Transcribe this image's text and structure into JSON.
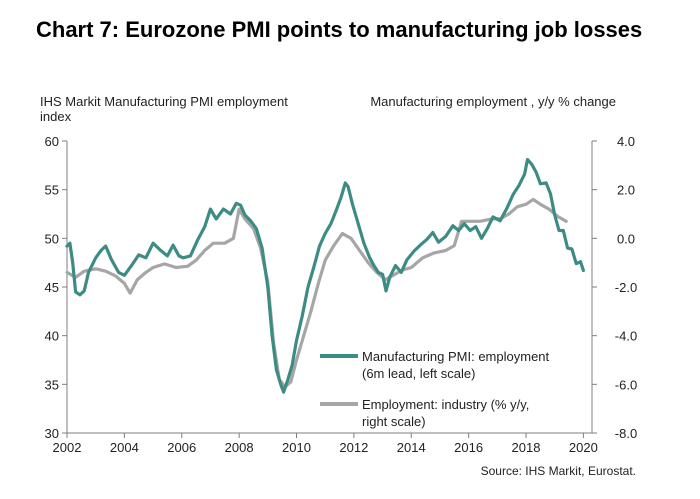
{
  "title": "Chart 7: Eurozone PMI points to manufacturing job losses",
  "left_axis_label": "IHS Markit Manufacturing PMI employment index",
  "right_axis_label": "Manufacturing employment , y/y % change",
  "source": "Source: IHS Markit, Eurostat.",
  "colors": {
    "pmi": "#3d8c84",
    "employment": "#a6a6a6",
    "axis": "#7f7f7f"
  },
  "chart_data": {
    "type": "line",
    "title": "Chart 7: Eurozone PMI points to manufacturing job losses",
    "xlabel": "",
    "ylabel": "IHS Markit Manufacturing PMI employment index",
    "y2label": "Manufacturing employment , y/y % change",
    "xlim": [
      2002,
      2020.3
    ],
    "ylim": [
      30,
      60
    ],
    "y2lim": [
      -8,
      4
    ],
    "x_ticks": [
      2002,
      2004,
      2006,
      2008,
      2010,
      2012,
      2014,
      2016,
      2018,
      2020
    ],
    "x_tick_labels": [
      "2002",
      "2004",
      "2006",
      "2008",
      "2010",
      "2012",
      "2014",
      "2016",
      "2018",
      "2020"
    ],
    "y_ticks": [
      30,
      35,
      40,
      45,
      50,
      55,
      60
    ],
    "y_tick_labels": [
      "30",
      "35",
      "40",
      "45",
      "50",
      "55",
      "60"
    ],
    "y2_ticks": [
      -8,
      -6,
      -4,
      -2,
      0,
      2,
      4
    ],
    "y2_tick_labels": [
      "-8.0",
      "-6.0",
      "-4.0",
      "-2.0",
      "0.0",
      "2.0",
      "4.0"
    ],
    "grid": false,
    "legend_position": "center-right",
    "series": [
      {
        "name": "Manufacturing PMI: employment (6m lead, left scale)",
        "axis": "left",
        "points": [
          [
            2002.0,
            49.2
          ],
          [
            2002.1,
            49.5
          ],
          [
            2002.2,
            47.5
          ],
          [
            2002.3,
            44.5
          ],
          [
            2002.45,
            44.2
          ],
          [
            2002.6,
            44.6
          ],
          [
            2002.75,
            46.5
          ],
          [
            2003.0,
            48.0
          ],
          [
            2003.2,
            48.8
          ],
          [
            2003.35,
            49.2
          ],
          [
            2003.55,
            47.8
          ],
          [
            2003.8,
            46.5
          ],
          [
            2004.0,
            46.2
          ],
          [
            2004.25,
            47.2
          ],
          [
            2004.5,
            48.3
          ],
          [
            2004.75,
            48.0
          ],
          [
            2005.0,
            49.5
          ],
          [
            2005.25,
            48.8
          ],
          [
            2005.5,
            48.2
          ],
          [
            2005.7,
            49.3
          ],
          [
            2005.9,
            48.2
          ],
          [
            2006.05,
            48.0
          ],
          [
            2006.3,
            48.2
          ],
          [
            2006.55,
            49.8
          ],
          [
            2006.8,
            51.2
          ],
          [
            2007.0,
            53.0
          ],
          [
            2007.2,
            52.0
          ],
          [
            2007.45,
            53.0
          ],
          [
            2007.7,
            52.5
          ],
          [
            2007.9,
            53.6
          ],
          [
            2008.05,
            53.4
          ],
          [
            2008.2,
            52.4
          ],
          [
            2008.4,
            51.8
          ],
          [
            2008.6,
            51.0
          ],
          [
            2008.8,
            49.0
          ],
          [
            2009.0,
            45.0
          ],
          [
            2009.15,
            40.0
          ],
          [
            2009.3,
            36.5
          ],
          [
            2009.45,
            35.0
          ],
          [
            2009.55,
            34.2
          ],
          [
            2009.7,
            35.5
          ],
          [
            2009.85,
            37.0
          ],
          [
            2010.0,
            39.5
          ],
          [
            2010.2,
            42.0
          ],
          [
            2010.4,
            45.0
          ],
          [
            2010.6,
            47.0
          ],
          [
            2010.8,
            49.2
          ],
          [
            2011.0,
            50.5
          ],
          [
            2011.2,
            51.5
          ],
          [
            2011.4,
            53.0
          ],
          [
            2011.55,
            54.2
          ],
          [
            2011.7,
            55.7
          ],
          [
            2011.8,
            55.3
          ],
          [
            2011.95,
            53.5
          ],
          [
            2012.15,
            51.5
          ],
          [
            2012.35,
            49.5
          ],
          [
            2012.55,
            48.0
          ],
          [
            2012.7,
            47.2
          ],
          [
            2012.85,
            46.5
          ],
          [
            2013.0,
            46.3
          ],
          [
            2013.12,
            44.6
          ],
          [
            2013.25,
            46.0
          ],
          [
            2013.45,
            47.2
          ],
          [
            2013.65,
            46.5
          ],
          [
            2013.85,
            47.8
          ],
          [
            2014.1,
            48.7
          ],
          [
            2014.35,
            49.4
          ],
          [
            2014.55,
            49.9
          ],
          [
            2014.75,
            50.6
          ],
          [
            2014.95,
            49.6
          ],
          [
            2015.2,
            50.2
          ],
          [
            2015.45,
            51.3
          ],
          [
            2015.65,
            50.8
          ],
          [
            2015.85,
            51.5
          ],
          [
            2016.05,
            50.8
          ],
          [
            2016.25,
            51.2
          ],
          [
            2016.45,
            50.0
          ],
          [
            2016.65,
            51.0
          ],
          [
            2016.85,
            52.2
          ],
          [
            2017.1,
            51.8
          ],
          [
            2017.35,
            53.2
          ],
          [
            2017.55,
            54.5
          ],
          [
            2017.75,
            55.4
          ],
          [
            2017.95,
            56.6
          ],
          [
            2018.05,
            58.1
          ],
          [
            2018.2,
            57.6
          ],
          [
            2018.35,
            56.8
          ],
          [
            2018.5,
            55.6
          ],
          [
            2018.7,
            55.7
          ],
          [
            2018.85,
            54.6
          ],
          [
            2019.0,
            52.4
          ],
          [
            2019.15,
            50.8
          ],
          [
            2019.3,
            50.8
          ],
          [
            2019.45,
            49.0
          ],
          [
            2019.6,
            48.9
          ],
          [
            2019.75,
            47.4
          ],
          [
            2019.9,
            47.6
          ],
          [
            2020.0,
            46.7
          ]
        ]
      },
      {
        "name": "Employment: industry (% y/y, right scale)",
        "axis": "right",
        "points": [
          [
            2002.0,
            -1.4
          ],
          [
            2002.3,
            -1.6
          ],
          [
            2002.6,
            -1.35
          ],
          [
            2003.0,
            -1.25
          ],
          [
            2003.35,
            -1.35
          ],
          [
            2003.7,
            -1.55
          ],
          [
            2004.0,
            -1.85
          ],
          [
            2004.2,
            -2.25
          ],
          [
            2004.45,
            -1.7
          ],
          [
            2004.75,
            -1.4
          ],
          [
            2005.0,
            -1.2
          ],
          [
            2005.4,
            -1.05
          ],
          [
            2005.8,
            -1.2
          ],
          [
            2006.2,
            -1.15
          ],
          [
            2006.5,
            -0.9
          ],
          [
            2006.8,
            -0.5
          ],
          [
            2007.1,
            -0.2
          ],
          [
            2007.5,
            -0.2
          ],
          [
            2007.8,
            0.0
          ],
          [
            2008.0,
            1.2
          ],
          [
            2008.2,
            0.8
          ],
          [
            2008.5,
            0.4
          ],
          [
            2008.75,
            -0.4
          ],
          [
            2009.0,
            -1.8
          ],
          [
            2009.2,
            -4.3
          ],
          [
            2009.4,
            -5.8
          ],
          [
            2009.6,
            -6.1
          ],
          [
            2009.8,
            -5.9
          ],
          [
            2010.0,
            -5.0
          ],
          [
            2010.25,
            -4.0
          ],
          [
            2010.5,
            -3.0
          ],
          [
            2010.75,
            -1.9
          ],
          [
            2011.0,
            -0.9
          ],
          [
            2011.3,
            -0.3
          ],
          [
            2011.6,
            0.2
          ],
          [
            2011.9,
            0.0
          ],
          [
            2012.2,
            -0.5
          ],
          [
            2012.5,
            -1.0
          ],
          [
            2012.8,
            -1.4
          ],
          [
            2013.1,
            -1.7
          ],
          [
            2013.4,
            -1.5
          ],
          [
            2013.7,
            -1.3
          ],
          [
            2014.0,
            -1.2
          ],
          [
            2014.4,
            -0.8
          ],
          [
            2014.8,
            -0.6
          ],
          [
            2015.2,
            -0.5
          ],
          [
            2015.5,
            -0.3
          ],
          [
            2015.75,
            0.7
          ],
          [
            2016.0,
            0.7
          ],
          [
            2016.4,
            0.7
          ],
          [
            2016.8,
            0.8
          ],
          [
            2017.1,
            0.8
          ],
          [
            2017.4,
            1.0
          ],
          [
            2017.7,
            1.3
          ],
          [
            2018.0,
            1.4
          ],
          [
            2018.25,
            1.6
          ],
          [
            2018.5,
            1.4
          ],
          [
            2018.8,
            1.2
          ],
          [
            2019.1,
            0.9
          ],
          [
            2019.4,
            0.7
          ]
        ]
      }
    ]
  }
}
